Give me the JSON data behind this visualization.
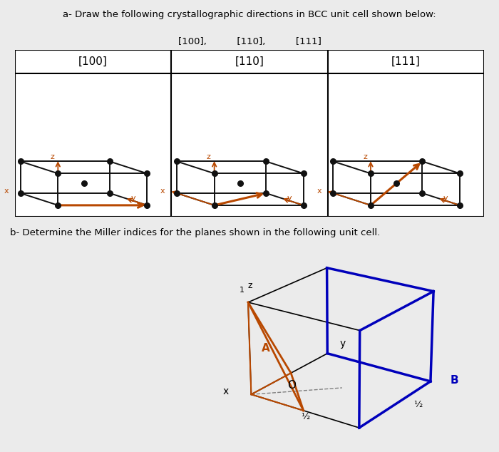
{
  "title_a": "a- Draw the following crystallographic directions in BCC unit cell shown below:",
  "title_a_sub": "[100],          [110],          [111]",
  "labels": [
    "[100]",
    "[110]",
    "[111]"
  ],
  "title_b": "b- Determine the Miller indices for the planes shown in the following unit cell.",
  "bg_color": "#ebebeb",
  "cube_color": "#111111",
  "arrow_color": "#b84800",
  "dot_color": "#111111",
  "blue_color": "#0000bb",
  "orange_color": "#b84800",
  "cube_lw": 1.4,
  "dot_size": 5.5
}
